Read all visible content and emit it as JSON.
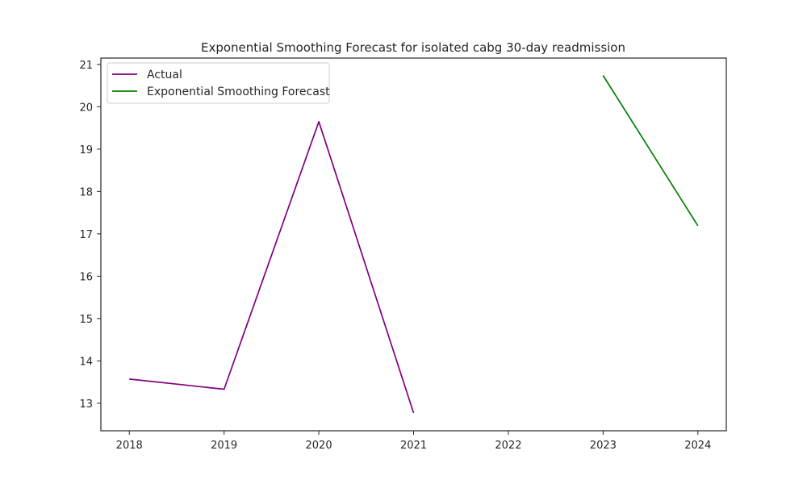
{
  "chart_data": {
    "type": "line",
    "title": "Exponential Smoothing Forecast for isolated cabg 30-day readmission",
    "xlabel": "",
    "ylabel": "",
    "xlim": [
      2017.7,
      2024.3
    ],
    "ylim": [
      12.35,
      21.15
    ],
    "x_ticks": [
      2018,
      2019,
      2020,
      2021,
      2022,
      2023,
      2024
    ],
    "y_ticks": [
      13,
      14,
      15,
      16,
      17,
      18,
      19,
      20,
      21
    ],
    "grid": false,
    "legend_position": "upper-left",
    "series": [
      {
        "name": "Actual",
        "color": "#800080",
        "x": [
          2018,
          2019,
          2020,
          2021
        ],
        "values": [
          13.57,
          13.33,
          19.65,
          12.77
        ]
      },
      {
        "name": "Exponential Smoothing Forecast",
        "color": "#008000",
        "x": [
          2023,
          2024
        ],
        "values": [
          20.74,
          17.19
        ]
      }
    ]
  }
}
